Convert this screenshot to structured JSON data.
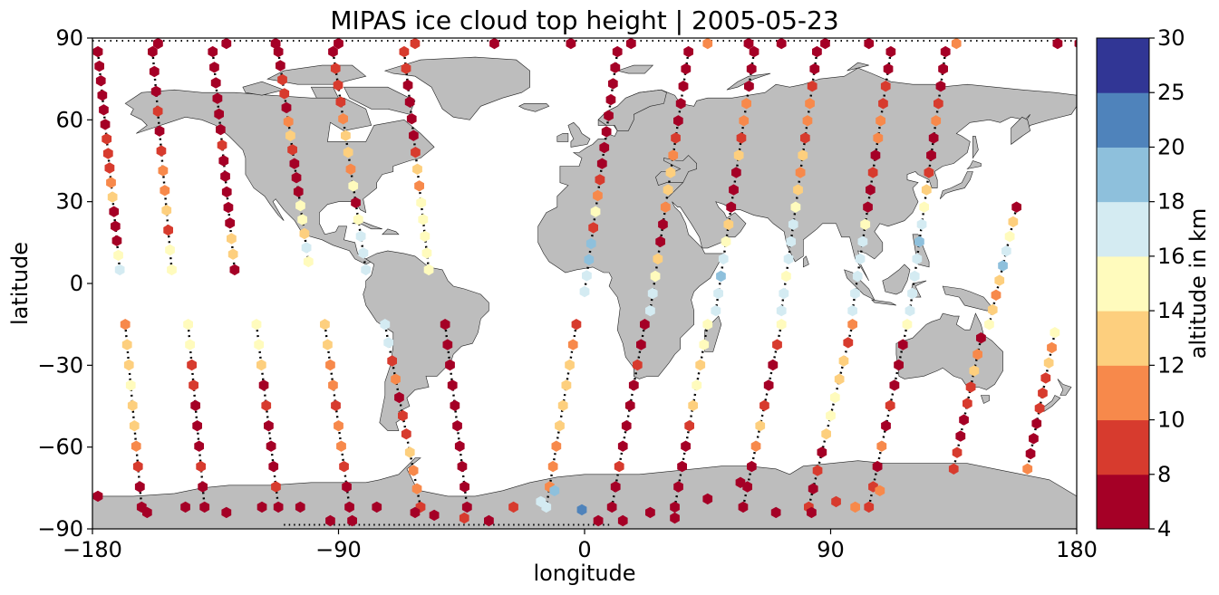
{
  "chart_data": {
    "type": "scatter",
    "title": "MIPAS ice cloud top height | 2005-05-23",
    "xlabel": "longitude",
    "ylabel": "latitude",
    "xlim": [
      -180,
      180
    ],
    "ylim": [
      -90,
      90
    ],
    "xticks": [
      -180,
      -90,
      0,
      90,
      180
    ],
    "yticks": [
      -90,
      -60,
      -30,
      0,
      30,
      60,
      90
    ],
    "xtick_labels": [
      "−180",
      "−90",
      "0",
      "90",
      "180"
    ],
    "ytick_labels": [
      "−90",
      "−60",
      "−30",
      "0",
      "30",
      "60",
      "90"
    ],
    "grid": false,
    "basemap": "world coastlines, land filled grey",
    "colors": {
      "land": "#bdbdbd",
      "coastline": "#000000",
      "track": "#000000"
    },
    "colorbar": {
      "label": "altitude in km",
      "bounds": [
        4,
        8,
        10,
        12,
        14,
        16,
        18,
        20,
        25,
        30
      ],
      "tick_labels": [
        "4",
        "8",
        "10",
        "12",
        "14",
        "16",
        "18",
        "20",
        "25",
        "30"
      ],
      "colors": [
        "#a50026",
        "#d73027",
        "#f46d43",
        "#fdae61",
        "#fee090",
        "#ffffbf",
        "#e0f3f8",
        "#abd9e9",
        "#4575b4",
        "#313695"
      ],
      "display_colors": [
        "#a50026",
        "#d73b2e",
        "#f7894b",
        "#fdcf7e",
        "#fffbbd",
        "#d4ebf2",
        "#8ec0dc",
        "#4f83bb",
        "#313695"
      ]
    },
    "series": [
      {
        "lon_n": [
          -178,
          -170
        ],
        "lat_n": [
          85,
          5
        ],
        "lon_s": [
          -168,
          -162
        ],
        "lat_s": [
          -15,
          -82
        ],
        "alt_n": [
          6,
          6,
          6,
          6,
          6,
          6,
          9,
          9,
          9,
          11,
          13,
          6,
          6,
          6,
          15,
          17
        ],
        "alt_s": [
          11,
          13,
          13,
          15,
          13,
          13,
          11,
          9,
          6,
          6
        ]
      },
      {
        "lon_n": [
          -158,
          -151
        ],
        "lat_n": [
          85,
          5
        ],
        "lon_s": [
          -145,
          -139
        ],
        "lat_s": [
          -15,
          -82
        ],
        "alt_n": [
          6,
          6,
          6,
          9,
          6,
          9,
          11,
          11,
          13,
          9,
          15,
          15
        ],
        "alt_s": [
          15,
          15,
          9,
          9,
          6,
          6,
          6,
          9,
          6,
          6
        ]
      },
      {
        "lon_n": [
          -136,
          -128
        ],
        "lat_n": [
          85,
          5
        ],
        "lon_s": [
          -120,
          -112
        ],
        "lat_s": [
          -15,
          -82
        ],
        "alt_n": [
          6,
          6,
          6,
          6,
          6,
          6,
          9,
          6,
          6,
          6,
          6,
          6,
          13,
          13,
          6
        ],
        "alt_s": [
          15,
          15,
          13,
          6,
          9,
          6,
          6,
          6,
          9,
          6
        ]
      },
      {
        "lon_n": [
          -112,
          -101
        ],
        "lat_n": [
          85,
          8
        ],
        "lon_s": [
          -95,
          -86
        ],
        "lat_s": [
          -15,
          -82
        ],
        "alt_n": [
          6,
          6,
          9,
          9,
          6,
          11,
          13,
          9,
          6,
          6,
          6,
          15,
          15,
          13,
          17,
          15
        ],
        "alt_s": [
          13,
          13,
          11,
          11,
          9,
          11,
          11,
          9,
          6,
          6
        ]
      },
      {
        "lon_n": [
          -92,
          -80
        ],
        "lat_n": [
          85,
          5
        ],
        "lon_s": [
          -73,
          -60
        ],
        "lat_s": [
          -15,
          -82
        ],
        "alt_n": [
          6,
          9,
          9,
          9,
          11,
          13,
          13,
          11,
          15,
          6,
          15,
          17,
          17,
          17
        ],
        "alt_s": [
          17,
          17,
          9,
          11,
          6,
          9,
          9,
          13,
          11,
          11,
          9
        ]
      },
      {
        "lon_n": [
          -66,
          -57
        ],
        "lat_n": [
          85,
          5
        ],
        "lon_s": [
          -51,
          -43
        ],
        "lat_s": [
          -15,
          -82
        ],
        "alt_n": [
          9,
          9,
          6,
          6,
          6,
          6,
          9,
          13,
          11,
          15,
          15,
          15,
          15,
          15
        ],
        "alt_s": [
          6,
          6,
          6,
          6,
          6,
          6,
          6,
          6,
          6,
          6
        ]
      },
      {
        "lon_n": [
          12,
          0
        ],
        "lat_n": [
          85,
          -3
        ],
        "lon_s": [
          -3,
          -14
        ],
        "lat_s": [
          -15,
          -82
        ],
        "alt_n": [
          6,
          6,
          6,
          6,
          6,
          6,
          6,
          6,
          9,
          11,
          15,
          9,
          19,
          19,
          17,
          17
        ],
        "alt_s": [
          9,
          11,
          13,
          13,
          13,
          13,
          11,
          11,
          11,
          17
        ]
      },
      {
        "lon_n": [
          38,
          24
        ],
        "lat_n": [
          85,
          -10
        ],
        "lon_s": [
          22,
          10
        ],
        "lat_s": [
          -15,
          -82
        ],
        "alt_n": [
          6,
          6,
          6,
          6,
          6,
          9,
          11,
          13,
          13,
          11,
          6,
          6,
          13,
          15,
          17,
          17
        ],
        "alt_s": [
          6,
          6,
          9,
          6,
          6,
          6,
          6,
          9,
          6,
          6
        ]
      },
      {
        "lon_n": [
          62,
          48
        ],
        "lat_n": [
          85,
          -10
        ],
        "lon_s": [
          45,
          33
        ],
        "lat_s": [
          -15,
          -82
        ],
        "alt_n": [
          6,
          6,
          6,
          11,
          11,
          9,
          13,
          6,
          6,
          6,
          13,
          15,
          17,
          19,
          17,
          17
        ],
        "alt_s": [
          15,
          15,
          13,
          15,
          13,
          9,
          6,
          6,
          6,
          6
        ]
      },
      {
        "lon_n": [
          85,
          72
        ],
        "lat_n": [
          85,
          -10
        ],
        "lon_s": [
          72,
          58
        ],
        "lat_s": [
          -15,
          -82
        ],
        "alt_n": [
          6,
          6,
          9,
          11,
          11,
          9,
          13,
          11,
          13,
          15,
          17,
          17,
          17,
          15,
          17,
          17
        ],
        "alt_s": [
          15,
          9,
          6,
          6,
          9,
          13,
          11,
          6,
          6,
          6
        ]
      },
      {
        "lon_n": [
          112,
          98
        ],
        "lat_n": [
          85,
          -10
        ],
        "lon_s": [
          98,
          82
        ],
        "lat_s": [
          -15,
          -82
        ],
        "alt_n": [
          6,
          6,
          9,
          9,
          11,
          11,
          6,
          9,
          6,
          6,
          15,
          17,
          17,
          17,
          17,
          17
        ],
        "alt_s": [
          11,
          9,
          13,
          13,
          15,
          15,
          13,
          6,
          9,
          6,
          9
        ]
      },
      {
        "lon_n": [
          132,
          119
        ],
        "lat_n": [
          85,
          -10
        ],
        "lon_s": [
          118,
          104
        ],
        "lat_s": [
          -15,
          -82
        ],
        "alt_n": [
          6,
          6,
          6,
          9,
          11,
          6,
          6,
          9,
          13,
          15,
          17,
          19,
          17,
          17,
          17,
          17
        ],
        "alt_s": [
          15,
          6,
          6,
          6,
          9,
          6,
          11,
          6,
          9,
          9
        ]
      },
      {
        "lon_n": [
          158,
          148
        ],
        "lat_n": [
          28,
          -15
        ],
        "lon_s": [
          145,
          135
        ],
        "lat_s": [
          -20,
          -68
        ],
        "alt_n": [
          6,
          13,
          15,
          17,
          19,
          13,
          11,
          13,
          15
        ],
        "alt_s": [
          6,
          11,
          13,
          9,
          9,
          6,
          6,
          9,
          9
        ]
      },
      {
        "lon_n": [
          172,
          162
        ],
        "lat_n": [
          -18,
          -68
        ],
        "lon_s": [
          180,
          180
        ],
        "lat_s": [
          -70,
          -70
        ],
        "alt_n": [
          15,
          11,
          13,
          9,
          9,
          9,
          6,
          6,
          6,
          11
        ],
        "alt_s": []
      }
    ],
    "polar_points": {
      "north_lon": [
        -156,
        -131,
        -113,
        -90,
        -62,
        -33,
        -5,
        17,
        45,
        60,
        72,
        88,
        104,
        136,
        173,
        181
      ],
      "north_alt": [
        6,
        6,
        6,
        6,
        9,
        6,
        6,
        6,
        11,
        6,
        6,
        6,
        6,
        11,
        6,
        6
      ],
      "south_lon": [
        -178,
        -160,
        -146,
        -131,
        -118,
        -104,
        -93,
        -85,
        -76,
        -62,
        -55,
        -44,
        -35,
        -26,
        -16,
        -11,
        -1,
        5,
        14,
        24,
        33,
        45,
        57,
        70,
        83,
        92,
        99,
        108
      ],
      "south_lat": [
        -78,
        -84,
        -82,
        -84,
        -82,
        -82,
        -87,
        -87,
        -82,
        -84,
        -85,
        -86,
        -87,
        -82,
        -80,
        -76,
        -83,
        -87,
        -87,
        -84,
        -86,
        -79,
        -73,
        -84,
        -84,
        -80,
        -82,
        -76
      ],
      "south_alt": [
        6,
        6,
        6,
        6,
        6,
        6,
        6,
        6,
        6,
        6,
        6,
        9,
        6,
        9,
        17,
        18,
        21,
        6,
        6,
        6,
        6,
        6,
        6,
        6,
        6,
        9,
        11,
        11
      ]
    }
  }
}
